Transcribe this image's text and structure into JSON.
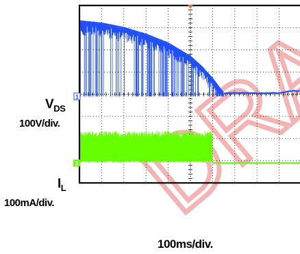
{
  "chart_data": {
    "type": "line",
    "title": "",
    "grid": true,
    "xlabel": "100ms/div.",
    "time_per_div_ms": 100,
    "x_divisions": 10,
    "y_divisions": 8,
    "visible_x_range_div": [
      0,
      9.6
    ],
    "colors": {
      "ch1": "#1f4fff",
      "ch2": "#66ff00",
      "grid": "#000000",
      "trigger_marker": "#ff6633",
      "watermark": "#f2a8a8"
    },
    "channels": [
      {
        "id": "ch1",
        "marker": "1",
        "name_main": "V",
        "name_sub": "DS",
        "scale_label": "100V/div.",
        "ground_level_div": -0.1,
        "trace": {
          "x_div": [
            0,
            1,
            2,
            3,
            4,
            5,
            5.5,
            6,
            6.3,
            6.5,
            7,
            8,
            9,
            9.6
          ],
          "envelope_div": [
            3.3,
            3.2,
            3.0,
            2.7,
            2.3,
            1.7,
            1.25,
            0.7,
            0.3,
            0.05,
            0.05,
            0.05,
            0.05,
            0.15
          ],
          "dropouts_until_div": 6.5
        }
      },
      {
        "id": "ch2",
        "marker": "3",
        "name_main": "I",
        "name_sub": "L",
        "scale_label": "100mA/div.",
        "ground_level_div": -3.1,
        "trace": {
          "x_div": [
            0,
            6.0
          ],
          "band_top_div": -1.8,
          "band_bottom_div": -3.0,
          "active_until_div": 6.0,
          "post_level_div": -3.1
        }
      }
    ]
  }
}
